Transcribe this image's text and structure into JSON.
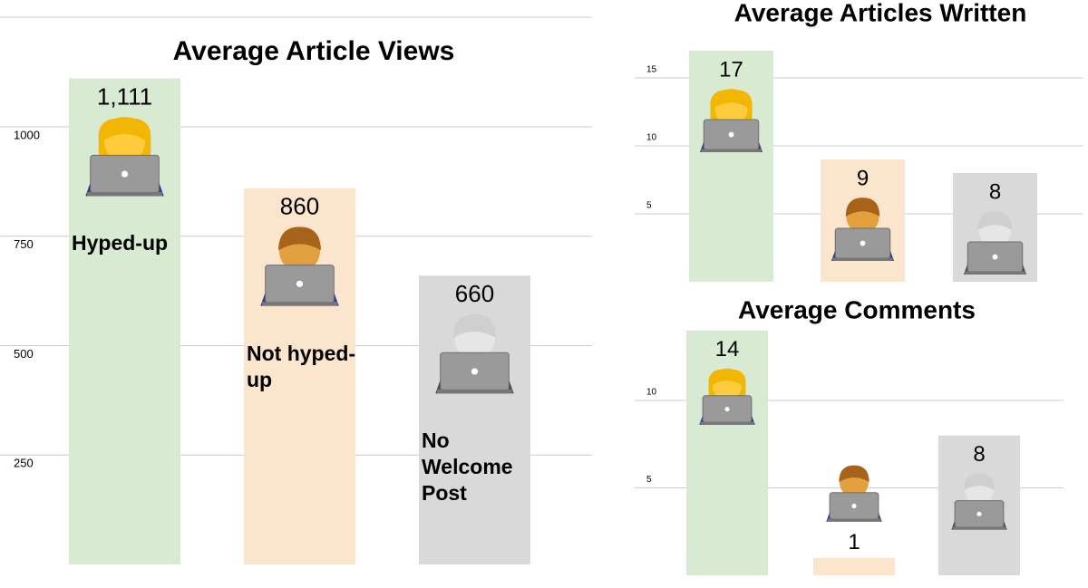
{
  "chart_data": [
    {
      "type": "bar",
      "title": "Average Article Views",
      "categories": [
        "Hyped-up",
        "Not hyped-up",
        "No Welcome Post"
      ],
      "values": [
        1111,
        860,
        660
      ],
      "value_labels": [
        "1,111",
        "860",
        "660"
      ],
      "colors": [
        "#d9ead3",
        "#fce5cd",
        "#d9d9d9"
      ],
      "ylim": [
        0,
        1250
      ],
      "yticks": [
        250,
        500,
        750,
        1000
      ],
      "grid": true
    },
    {
      "type": "bar",
      "title": "Average Articles Written",
      "values": [
        17,
        9,
        8
      ],
      "colors": [
        "#d9ead3",
        "#fce5cd",
        "#d9d9d9"
      ],
      "ylim": [
        0,
        18
      ],
      "yticks": [
        5,
        10,
        15
      ],
      "grid": true
    },
    {
      "type": "bar",
      "title": "Average Comments",
      "values": [
        14,
        1,
        8
      ],
      "colors": [
        "#d9ead3",
        "#fce5cd",
        "#d9d9d9"
      ],
      "ylim": [
        0,
        14.5
      ],
      "yticks": [
        5,
        10
      ],
      "grid": true
    }
  ]
}
